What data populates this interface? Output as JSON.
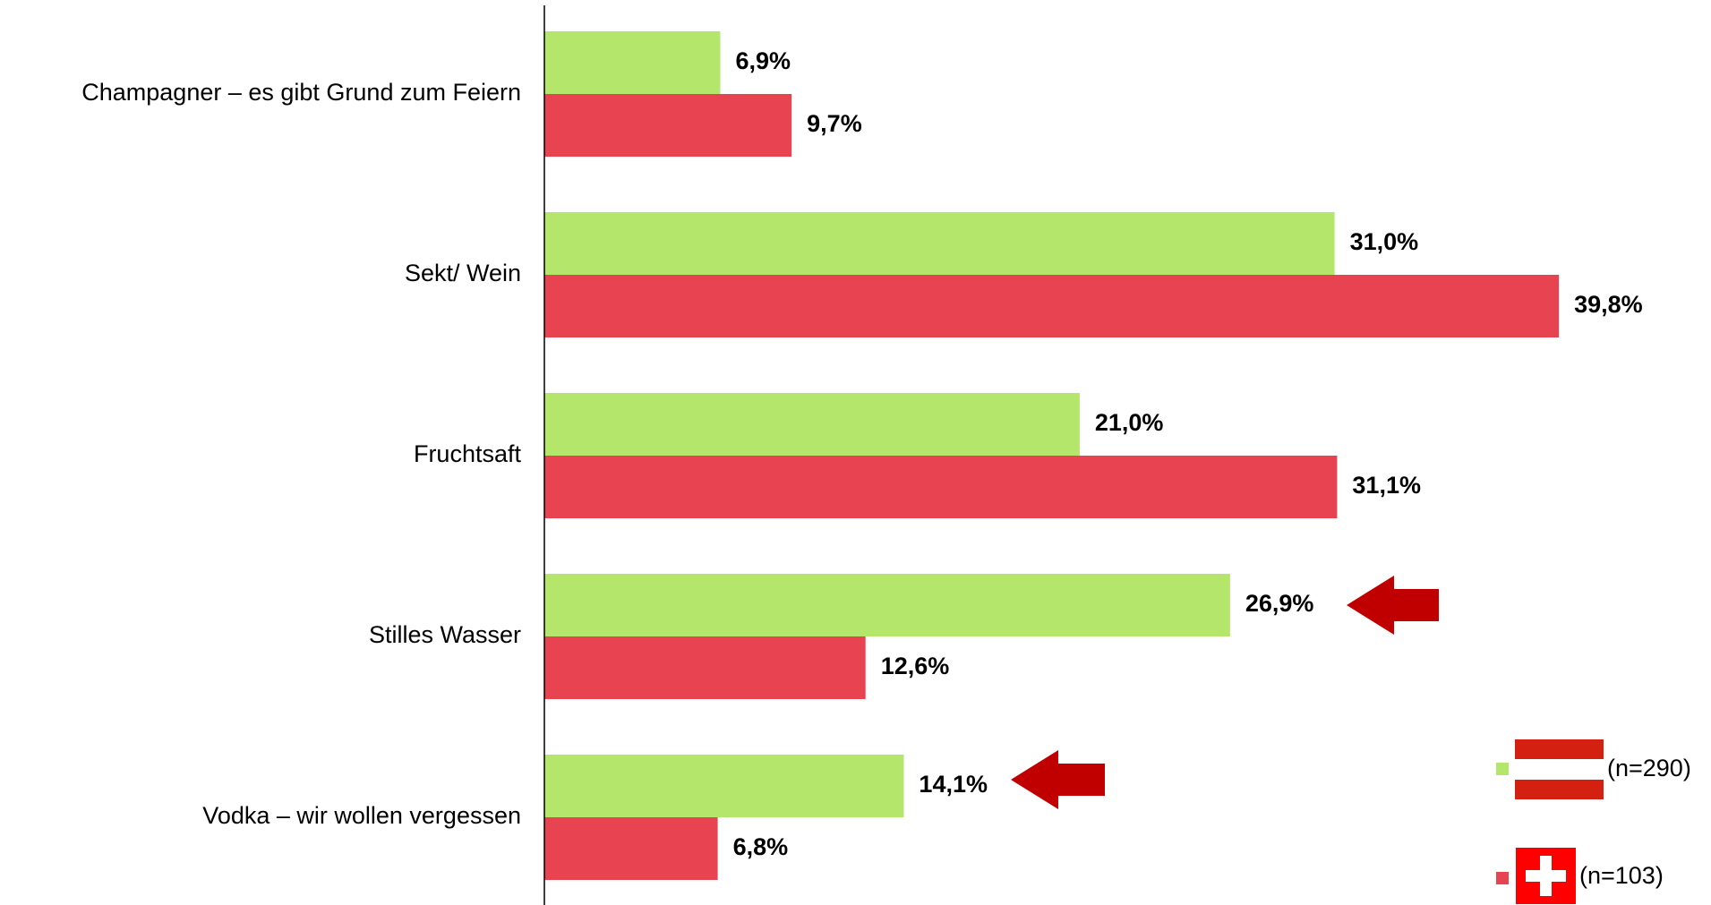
{
  "chart_data": {
    "type": "bar",
    "orientation": "horizontal",
    "categories": [
      "Champagner – es gibt Grund zum Feiern",
      "Sekt/ Wein",
      "Fruchtsaft",
      "Stilles Wasser",
      "Vodka – wir wollen vergessen"
    ],
    "series": [
      {
        "name": "(n=290)",
        "color": "#b3e66a",
        "values": [
          6.9,
          31.0,
          21.0,
          26.9,
          14.1
        ],
        "value_labels": [
          "6,9%",
          "31,0%",
          "21,0%",
          "26,9%",
          "14,1%"
        ]
      },
      {
        "name": "(n=103)",
        "color": "#e84350",
        "values": [
          9.7,
          39.8,
          31.1,
          12.6,
          6.8
        ],
        "value_labels": [
          "9,7%",
          "39,8%",
          "31,1%",
          "12,6%",
          "6,8%"
        ]
      }
    ],
    "xlim": [
      0,
      45
    ]
  }
}
